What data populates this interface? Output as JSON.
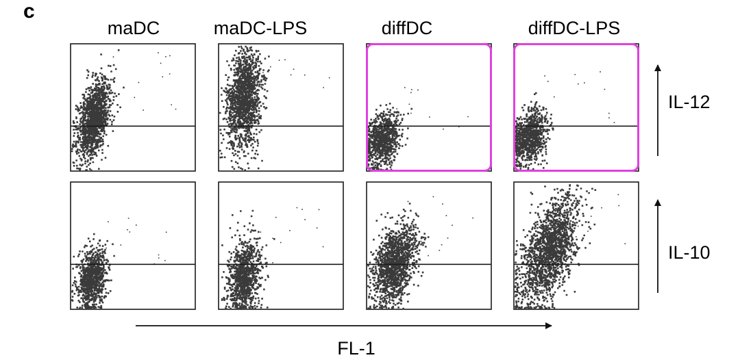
{
  "panel_letter": "c",
  "chart_data": {
    "type": "scatter",
    "columns": [
      "maDC",
      "maDC-LPS",
      "diffDC",
      "diffDC-LPS"
    ],
    "rows": [
      "IL-12",
      "IL-10"
    ],
    "xlabel": "FL-1",
    "highlighted_panels": [
      "IL-12/diffDC",
      "IL-12/diffDC-LPS"
    ],
    "highlight_color": "#e040e0",
    "dot_color": "#3a3a3a",
    "axis_range": [
      0,
      1
    ],
    "gate_level": 0.35,
    "populations": [
      {
        "row": "IL-12",
        "column": "maDC",
        "center": [
          0.18,
          0.42
        ],
        "spread": [
          0.07,
          0.14
        ],
        "tilt": 0.9,
        "n": 1400
      },
      {
        "row": "IL-12",
        "column": "maDC-LPS",
        "center": [
          0.2,
          0.58
        ],
        "spread": [
          0.07,
          0.2
        ],
        "tilt": 0.3,
        "n": 1500
      },
      {
        "row": "IL-12",
        "column": "diffDC",
        "center": [
          0.12,
          0.25
        ],
        "spread": [
          0.07,
          0.1
        ],
        "tilt": 0.5,
        "n": 900
      },
      {
        "row": "IL-12",
        "column": "diffDC-LPS",
        "center": [
          0.12,
          0.27
        ],
        "spread": [
          0.07,
          0.1
        ],
        "tilt": 0.5,
        "n": 900
      },
      {
        "row": "IL-10",
        "column": "maDC",
        "center": [
          0.17,
          0.24
        ],
        "spread": [
          0.06,
          0.12
        ],
        "tilt": 0.3,
        "n": 900
      },
      {
        "row": "IL-10",
        "column": "maDC-LPS",
        "center": [
          0.2,
          0.27
        ],
        "spread": [
          0.07,
          0.14
        ],
        "tilt": 0.4,
        "n": 1000
      },
      {
        "row": "IL-10",
        "column": "diffDC",
        "center": [
          0.22,
          0.36
        ],
        "spread": [
          0.09,
          0.14
        ],
        "tilt": 0.8,
        "n": 1400
      },
      {
        "row": "IL-10",
        "column": "diffDC-LPS",
        "center": [
          0.28,
          0.46
        ],
        "spread": [
          0.12,
          0.18
        ],
        "tilt": 1.0,
        "n": 1800
      }
    ]
  }
}
